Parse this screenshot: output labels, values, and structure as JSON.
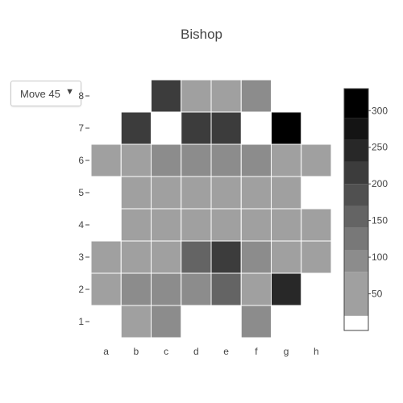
{
  "title": "Bishop",
  "dropdown": {
    "selected": "Move 45",
    "icon": "triangle-down-icon"
  },
  "chart_data": {
    "type": "heatmap",
    "title": "Bishop",
    "x": [
      "a",
      "b",
      "c",
      "d",
      "e",
      "f",
      "g",
      "h"
    ],
    "y": [
      "1",
      "2",
      "3",
      "4",
      "5",
      "6",
      "7",
      "8"
    ],
    "z": [
      [
        null,
        50,
        90,
        null,
        null,
        90,
        null,
        null
      ],
      [
        50,
        90,
        90,
        90,
        150,
        50,
        250,
        null
      ],
      [
        50,
        50,
        50,
        150,
        200,
        90,
        50,
        50
      ],
      [
        null,
        50,
        50,
        50,
        50,
        50,
        50,
        50
      ],
      [
        null,
        50,
        50,
        50,
        50,
        50,
        50,
        null
      ],
      [
        50,
        50,
        90,
        90,
        100,
        90,
        50,
        50
      ],
      [
        null,
        220,
        null,
        200,
        220,
        null,
        320,
        null
      ],
      [
        null,
        null,
        200,
        50,
        50,
        100,
        null,
        null
      ]
    ],
    "zrange": [
      0,
      330
    ],
    "colorscale": {
      "bands": [
        {
          "from": 0,
          "to": 20,
          "color": "#ffffff"
        },
        {
          "from": 20,
          "to": 80,
          "color": "#a0a0a0"
        },
        {
          "from": 80,
          "to": 110,
          "color": "#8c8c8c"
        },
        {
          "from": 110,
          "to": 140,
          "color": "#787878"
        },
        {
          "from": 140,
          "to": 170,
          "color": "#646464"
        },
        {
          "from": 170,
          "to": 200,
          "color": "#505050"
        },
        {
          "from": 200,
          "to": 230,
          "color": "#3c3c3c"
        },
        {
          "from": 230,
          "to": 260,
          "color": "#282828"
        },
        {
          "from": 260,
          "to": 290,
          "color": "#141414"
        },
        {
          "from": 290,
          "to": 330,
          "color": "#000000"
        }
      ]
    },
    "colorbar_ticks": [
      50,
      100,
      150,
      200,
      250,
      300
    ],
    "gap_color": "#ffffff"
  }
}
